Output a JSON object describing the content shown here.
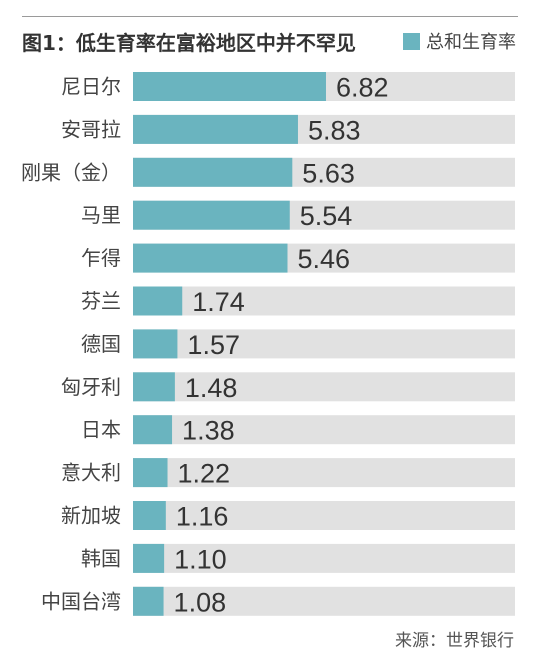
{
  "chart_data": {
    "type": "bar",
    "orientation": "horizontal",
    "title": "图1：低生育率在富裕地区中并不罕见",
    "legend": "总和生育率",
    "legend_position": "top-right",
    "categories": [
      "尼日尔",
      "安哥拉",
      "刚果（金）",
      "马里",
      "乍得",
      "芬兰",
      "德国",
      "匈牙利",
      "日本",
      "意大利",
      "新加坡",
      "韩国",
      "中国台湾"
    ],
    "values": [
      6.82,
      5.83,
      5.63,
      5.54,
      5.46,
      1.74,
      1.57,
      1.48,
      1.38,
      1.22,
      1.16,
      1.1,
      1.08
    ],
    "value_labels": [
      "6.82",
      "5.83",
      "5.63",
      "5.54",
      "5.46",
      "1.74",
      "1.57",
      "1.48",
      "1.38",
      "1.22",
      "1.16",
      "1.10",
      "1.08"
    ],
    "xlim": [
      0,
      13.5
    ],
    "grid": false,
    "source": "来源：世界银行",
    "colors": {
      "bar": "#6ab4bf",
      "track": "#e1e1e1",
      "text": "#333333"
    }
  }
}
